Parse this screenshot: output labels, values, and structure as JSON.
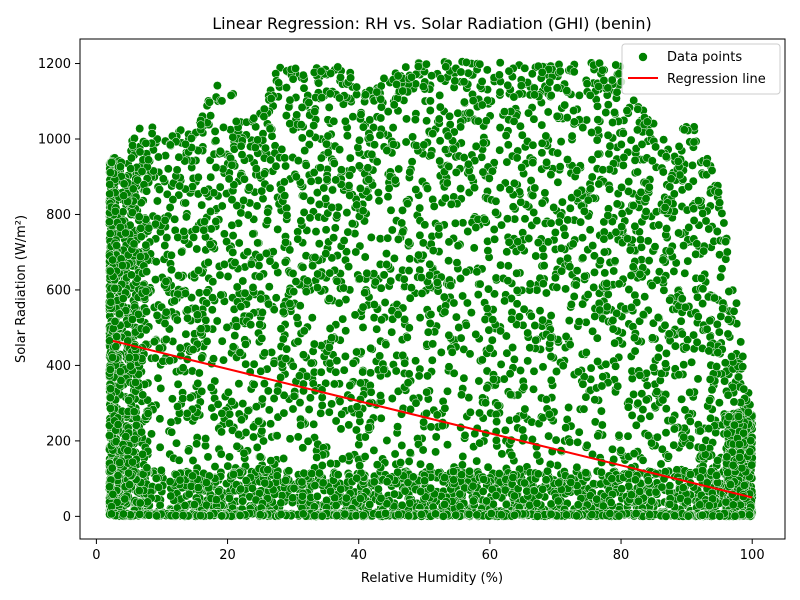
{
  "chart_data": {
    "type": "scatter",
    "title": "Linear Regression: RH vs. Solar Radiation (GHI) (benin)",
    "xlabel": "Relative Humidity (%)",
    "ylabel": "Solar Radiation (W/m²)",
    "xlim": [
      -2.5,
      105
    ],
    "ylim": [
      -60,
      1265
    ],
    "xticks": [
      0,
      20,
      40,
      60,
      80,
      100
    ],
    "yticks": [
      0,
      200,
      400,
      600,
      800,
      1000,
      1200
    ],
    "grid": false,
    "legend_position": "top-right",
    "colors": {
      "points": "#008000",
      "regression": "#ff0000"
    },
    "series": [
      {
        "name": "Data points",
        "kind": "scatter",
        "x": [
          3,
          4,
          5,
          6,
          8,
          10,
          12,
          15,
          18,
          20,
          23,
          25,
          28,
          30,
          33,
          35,
          38,
          40,
          42,
          45,
          48,
          50,
          52,
          55,
          58,
          60,
          62,
          65,
          68,
          70,
          72,
          75,
          78,
          80,
          82,
          85,
          88,
          90,
          92,
          95,
          98,
          100
        ],
        "y": [
          850,
          950,
          1000,
          1020,
          1050,
          1000,
          1030,
          1020,
          1140,
          1150,
          1050,
          1080,
          1200,
          1190,
          1200,
          1195,
          1205,
          1130,
          1140,
          1180,
          1205,
          1200,
          1205,
          1205,
          1205,
          1205,
          1205,
          1205,
          1205,
          1205,
          1205,
          1205,
          1205,
          1200,
          1100,
          1050,
          950,
          1080,
          1000,
          870,
          520,
          270
        ]
      },
      {
        "name": "Regression line",
        "kind": "line",
        "x": [
          2.5,
          100
        ],
        "y": [
          465,
          50
        ]
      }
    ]
  }
}
